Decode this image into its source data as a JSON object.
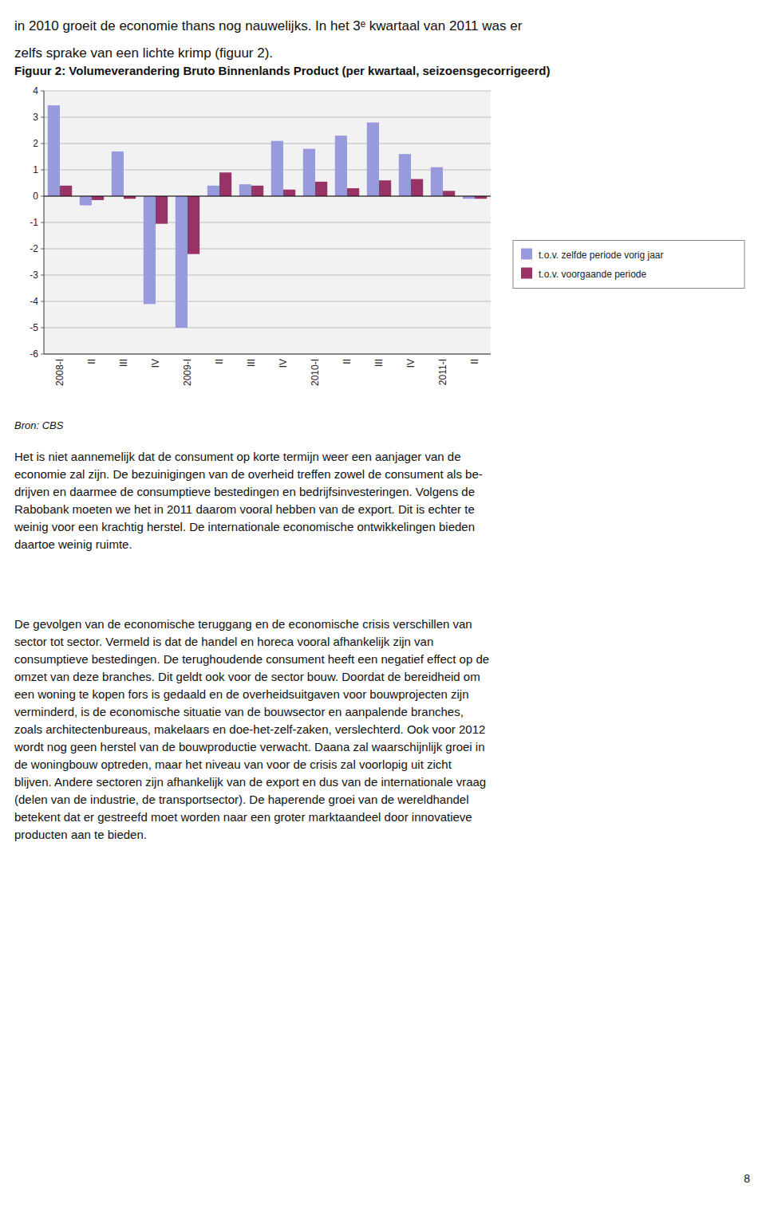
{
  "header_lines": [
    "in 2010 groeit de economie thans nog nauwelijks. In het 3ᵉ kwartaal van 2011 was er",
    "zelfs sprake van een lichte krimp (figuur 2)."
  ],
  "chart_data": {
    "type": "bar",
    "title": "Figuur 2: Volumeverandering Bruto Binnenlands Product (per kwartaal, seizoensgecorrigeerd)",
    "source": "Bron: CBS",
    "categories": [
      "2008-I",
      "II",
      "III",
      "IV",
      "2009-I",
      "II",
      "III",
      "IV",
      "2010-I",
      "II",
      "III",
      "IV",
      "2011-I",
      "II"
    ],
    "series": [
      {
        "name": "t.o.v. zelfde periode vorig jaar",
        "color": "#9999DD",
        "values": [
          3.45,
          -0.35,
          1.7,
          -4.1,
          -5.0,
          0.4,
          0.45,
          2.1,
          1.8,
          2.3,
          2.8,
          1.6,
          1.1,
          -0.1
        ]
      },
      {
        "name": "t.o.v. voorgaande periode",
        "color": "#993366",
        "values": [
          0.4,
          -0.15,
          -0.1,
          -1.05,
          -2.2,
          0.9,
          0.4,
          0.25,
          0.55,
          0.3,
          0.6,
          0.65,
          0.2,
          -0.1
        ]
      }
    ],
    "ylim": [
      -6,
      4
    ],
    "yticks": [
      -6,
      -5,
      -4,
      -3,
      -2,
      -1,
      0,
      1,
      2,
      3,
      4
    ],
    "grid": true,
    "legend": "right"
  },
  "paragraphs": [
    [
      "Het is niet aannemelijk dat de consument op korte termijn weer een aanjager van de",
      "economie zal zijn. De bezuinigingen van de overheid treffen zowel de consument als be-",
      "drijven en daarmee de consumptieve bestedingen en bedrijfsinvesteringen. Volgens de",
      "Rabobank moeten we het in 2011 daarom vooral hebben van de export. Dit is echter te",
      "weinig voor een krachtig herstel. De internationale economische ontwikkelingen bieden",
      "daartoe weinig ruimte."
    ],
    [
      "De gevolgen van de economische teruggang en de economische crisis verschillen van",
      "sector tot sector. Vermeld is dat de handel en horeca vooral afhankelijk zijn van",
      "consumptieve bestedingen. De terughoudende consument heeft een negatief effect op de",
      "omzet van deze branches. Dit geldt ook voor de sector bouw. Doordat de bereidheid om",
      "een woning te kopen fors is gedaald en de overheidsuitgaven voor bouwprojecten zijn",
      "verminderd, is de economische situatie van de bouwsector en aanpalende branches,",
      "zoals architectenbureaus, makelaars en doe-het-zelf-zaken, verslechterd. Ook voor 2012",
      "wordt nog geen herstel van de bouwproductie verwacht. Daana zal waarschijnlijk groei in",
      "de woningbouw optreden, maar het niveau van voor de crisis zal voorlopig uit zicht",
      "blijven. Andere sectoren zijn afhankelijk van de export en dus van de internationale vraag",
      "(delen van de industrie, de transportsector). De haperende groei van de wereldhandel",
      "betekent dat er gestreefd moet worden naar een groter marktaandeel door innovatieve",
      "producten aan te bieden."
    ]
  ],
  "page_number": "8"
}
